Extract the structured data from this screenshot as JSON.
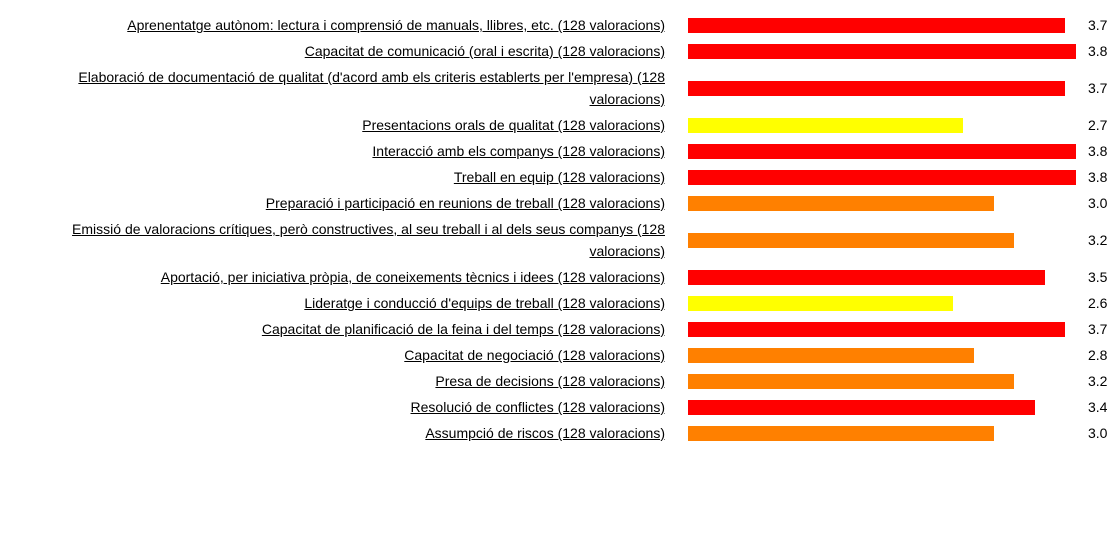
{
  "chart_data": {
    "type": "bar",
    "categories": [
      "Aprenentatge autònom: lectura i comprensió de manuals, llibres, etc. (128 valoracions)",
      "Capacitat de comunicació (oral i escrita) (128 valoracions)",
      "Elaboració de documentació de qualitat (d'acord amb els criteris establerts per l'empresa) (128 valoracions)",
      "Presentacions orals de qualitat (128 valoracions)",
      "Interacció amb els companys (128 valoracions)",
      "Treball en equip (128 valoracions)",
      "Preparació i participació en reunions de treball (128 valoracions)",
      "Emissió de valoracions crítiques, però constructives, al seu treball i al dels seus companys (128 valoracions)",
      "Aportació, per iniciativa pròpia, de coneixements tècnics i idees (128 valoracions)",
      "Lideratge i conducció d'equips de treball (128 valoracions)",
      "Capacitat de planificació de la feina i del temps (128 valoracions)",
      "Capacitat de negociació (128 valoracions)",
      "Presa de decisions (128 valoracions)",
      "Resolució de conflictes (128 valoracions)",
      "Assumpció de riscos (128 valoracions)"
    ],
    "values": [
      3.7,
      3.8,
      3.7,
      2.7,
      3.8,
      3.8,
      3.0,
      3.2,
      3.5,
      2.6,
      3.7,
      2.8,
      3.2,
      3.4,
      3.0
    ],
    "value_labels": [
      "3.7",
      "3.8",
      "3.7",
      "2.7",
      "3.8",
      "3.8",
      "3.0",
      "3.2",
      "3.5",
      "2.6",
      "3.7",
      "2.8",
      "3.2",
      "3.4",
      "3.0"
    ],
    "colors": [
      "#ff0000",
      "#ff0000",
      "#ff0000",
      "#ffff00",
      "#ff0000",
      "#ff0000",
      "#ff8000",
      "#ff8000",
      "#ff0000",
      "#ffff00",
      "#ff0000",
      "#ff8000",
      "#ff8000",
      "#ff0000",
      "#ff8000"
    ]
  }
}
